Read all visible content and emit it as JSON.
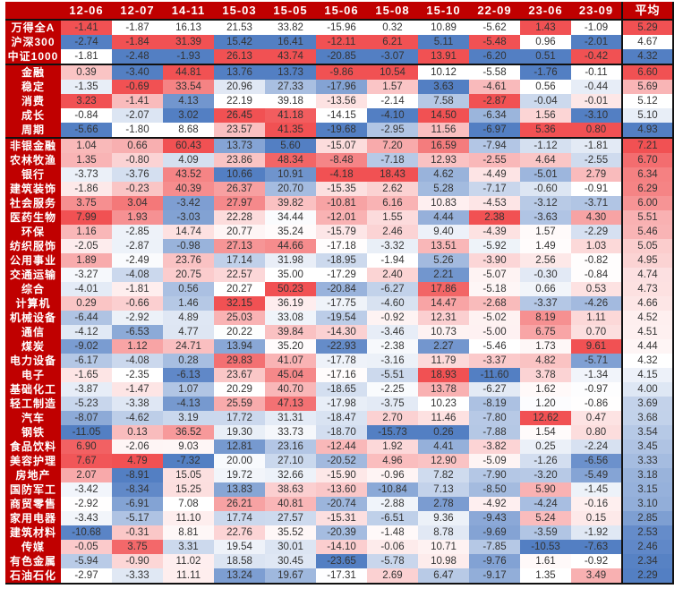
{
  "chart_data": {
    "type": "heatmap",
    "color_scale": {
      "high": "#f0484a",
      "mid": "#ffffff",
      "low": "#4a78c0"
    },
    "columns": [
      "12-06",
      "12-07",
      "14-11",
      "15-03",
      "15-05",
      "15-06",
      "15-08",
      "15-10",
      "22-09",
      "23-06",
      "23-09",
      "平均"
    ],
    "groups": [
      {
        "rows": [
          {
            "label": "万得全A",
            "values": [
              -1.41,
              -1.87,
              16.13,
              21.53,
              33.82,
              -15.96,
              0.32,
              10.89,
              -5.62,
              1.43,
              -1.09,
              5.29
            ]
          },
          {
            "label": "沪深300",
            "values": [
              -2.74,
              -1.84,
              31.39,
              15.42,
              16.41,
              -12.11,
              6.21,
              5.11,
              -5.48,
              0.96,
              -2.01,
              4.67
            ]
          },
          {
            "label": "中证1000",
            "values": [
              -1.81,
              -2.48,
              -1.93,
              26.13,
              43.74,
              -20.85,
              -3.07,
              13.91,
              -6.2,
              0.51,
              -0.42,
              4.32
            ]
          }
        ]
      },
      {
        "rows": [
          {
            "label": "金融",
            "values": [
              0.39,
              -3.4,
              44.81,
              13.76,
              13.73,
              -9.86,
              10.54,
              10.12,
              -5.58,
              -1.76,
              -0.11,
              6.6
            ]
          },
          {
            "label": "稳定",
            "values": [
              -1.35,
              -0.69,
              33.54,
              20.96,
              27.33,
              -17.96,
              1.57,
              3.63,
              -4.61,
              0.56,
              -0.44,
              5.69
            ]
          },
          {
            "label": "消费",
            "values": [
              3.23,
              -1.41,
              4.13,
              22.19,
              39.18,
              -13.56,
              -2.14,
              7.58,
              -2.87,
              -0.04,
              -0.01,
              5.12
            ]
          },
          {
            "label": "成长",
            "values": [
              -0.84,
              -2.07,
              3.02,
              26.45,
              41.18,
              -14.15,
              -4.1,
              14.5,
              -6.34,
              1.56,
              -3.1,
              5.1
            ]
          },
          {
            "label": "周期",
            "values": [
              -5.66,
              -1.8,
              8.68,
              23.57,
              41.35,
              -19.68,
              -2.95,
              11.56,
              -6.97,
              5.36,
              0.8,
              4.93
            ]
          }
        ]
      },
      {
        "rows": [
          {
            "label": "非银金融",
            "values": [
              1.04,
              0.66,
              60.43,
              13.73,
              5.6,
              -15.07,
              7.2,
              16.59,
              -7.94,
              -1.12,
              -1.81,
              7.21
            ]
          },
          {
            "label": "农林牧渔",
            "values": [
              1.35,
              -0.8,
              4.09,
              23.86,
              48.34,
              -8.48,
              -7.18,
              12.93,
              -2.55,
              4.64,
              -2.55,
              6.7
            ]
          },
          {
            "label": "银行",
            "values": [
              -3.73,
              -3.76,
              43.52,
              10.66,
              10.91,
              -4.18,
              18.43,
              4.62,
              -4.49,
              -5.01,
              2.79,
              6.34
            ]
          },
          {
            "label": "建筑装饰",
            "values": [
              -1.86,
              -0.23,
              40.39,
              26.37,
              20.7,
              -15.35,
              2.62,
              5.28,
              -7.17,
              -0.6,
              -0.91,
              6.29
            ]
          },
          {
            "label": "社会服务",
            "values": [
              3.75,
              3.04,
              -3.42,
              27.97,
              39.82,
              -10.81,
              6.16,
              10.83,
              -4.53,
              -3.12,
              -3.71,
              6.0
            ]
          },
          {
            "label": "医药生物",
            "values": [
              7.99,
              1.93,
              -3.03,
              22.28,
              34.44,
              -12.01,
              1.55,
              4.44,
              2.38,
              -3.63,
              4.3,
              5.51
            ]
          },
          {
            "label": "环保",
            "values": [
              1.16,
              -2.85,
              14.74,
              20.77,
              35.24,
              -15.79,
              2.46,
              9.4,
              -4.39,
              1.57,
              -2.29,
              5.46
            ]
          },
          {
            "label": "纺织服饰",
            "values": [
              -2.05,
              -2.87,
              -0.98,
              27.13,
              44.66,
              -17.18,
              -3.32,
              13.51,
              -5.92,
              1.49,
              1.03,
              5.05
            ]
          },
          {
            "label": "公用事业",
            "values": [
              1.89,
              -2.49,
              23.76,
              17.14,
              31.98,
              -18.95,
              -1.94,
              5.26,
              -3.9,
              2.56,
              -0.82,
              4.95
            ]
          },
          {
            "label": "交通运输",
            "values": [
              -3.27,
              -4.08,
              20.75,
              22.57,
              35.0,
              -17.29,
              2.4,
              2.21,
              -5.07,
              -0.3,
              -0.84,
              4.74
            ]
          },
          {
            "label": "综合",
            "values": [
              -4.01,
              -1.81,
              0.56,
              20.27,
              50.23,
              -20.84,
              -6.27,
              17.86,
              -5.18,
              0.66,
              0.53,
              4.73
            ]
          },
          {
            "label": "计算机",
            "values": [
              0.29,
              -0.66,
              1.46,
              32.15,
              36.19,
              -17.75,
              -4.6,
              14.47,
              -2.68,
              -3.37,
              -4.26,
              4.66
            ]
          },
          {
            "label": "机械设备",
            "values": [
              -6.44,
              -2.92,
              4.89,
              25.03,
              33.08,
              -19.54,
              -0.92,
              12.31,
              -5.02,
              8.19,
              1.11,
              4.52
            ]
          },
          {
            "label": "通信",
            "values": [
              -4.12,
              -6.53,
              4.77,
              20.22,
              39.84,
              -14.3,
              -3.46,
              10.73,
              -5.0,
              6.75,
              0.7,
              4.51
            ]
          },
          {
            "label": "煤炭",
            "values": [
              -9.02,
              1.12,
              24.71,
              13.94,
              35.2,
              -22.93,
              -2.38,
              2.27,
              -5.46,
              1.73,
              9.61,
              4.44
            ]
          },
          {
            "label": "电力设备",
            "values": [
              -6.17,
              -4.08,
              0.28,
              29.83,
              41.07,
              -17.78,
              -3.16,
              11.79,
              -3.37,
              4.82,
              -5.71,
              4.32
            ]
          },
          {
            "label": "电子",
            "values": [
              -1.65,
              -2.35,
              -6.13,
              23.67,
              45.04,
              -17.16,
              -5.51,
              18.93,
              -11.6,
              3.78,
              -1.34,
              4.15
            ]
          },
          {
            "label": "基础化工",
            "values": [
              -3.87,
              -1.47,
              1.07,
              20.29,
              40.7,
              -18.65,
              -2.25,
              13.78,
              -6.27,
              1.62,
              -0.97,
              4.0
            ]
          },
          {
            "label": "轻工制造",
            "values": [
              -5.23,
              -3.38,
              -4.13,
              25.59,
              47.13,
              -17.98,
              -3.75,
              10.23,
              -8.19,
              1.2,
              -0.86,
              3.69
            ]
          },
          {
            "label": "汽车",
            "values": [
              -8.07,
              -4.62,
              3.19,
              17.72,
              31.31,
              -18.47,
              2.7,
              11.46,
              -7.8,
              12.62,
              0.47,
              3.68
            ]
          },
          {
            "label": "钢铁",
            "values": [
              -11.05,
              0.13,
              36.52,
              19.3,
              33.73,
              -18.7,
              -15.73,
              0.26,
              -7.88,
              1.54,
              0.8,
              3.54
            ]
          },
          {
            "label": "食品饮料",
            "values": [
              6.9,
              -2.06,
              9.03,
              12.81,
              23.16,
              -12.44,
              1.92,
              4.41,
              -3.82,
              0.25,
              -2.24,
              3.45
            ]
          },
          {
            "label": "美容护理",
            "values": [
              7.67,
              4.79,
              -7.32,
              20.0,
              27.1,
              -20.52,
              4.96,
              12.9,
              -5.09,
              -1.26,
              -6.56,
              3.33
            ]
          },
          {
            "label": "房地产",
            "values": [
              2.07,
              -8.91,
              15.05,
              19.72,
              32.66,
              -15.9,
              -0.96,
              7.82,
              -7.9,
              -3.2,
              -5.49,
              3.18
            ]
          },
          {
            "label": "国防军工",
            "values": [
              -3.42,
              -8.34,
              15.25,
              13.83,
              38.63,
              -13.6,
              -10.84,
              7.13,
              -8.5,
              5.9,
              -1.45,
              3.15
            ]
          },
          {
            "label": "商贸零售",
            "values": [
              -2.92,
              -6.91,
              7.08,
              26.21,
              40.81,
              -20.74,
              -2.88,
              2.78,
              -4.92,
              -4.24,
              -0.16,
              3.1
            ]
          },
          {
            "label": "家用电器",
            "values": [
              -3.43,
              -5.17,
              11.1,
              17.74,
              27.57,
              -15.31,
              -6.51,
              9.36,
              -9.43,
              5.24,
              0.15,
              2.85
            ]
          },
          {
            "label": "建筑材料",
            "values": [
              -10.68,
              -0.31,
              8.81,
              22.76,
              35.52,
              -20.39,
              -1.48,
              8.78,
              -9.69,
              -3.59,
              -1.92,
              2.53
            ]
          },
          {
            "label": "传媒",
            "values": [
              -0.05,
              3.75,
              3.31,
              19.54,
              30.01,
              -14.1,
              -0.06,
              10.71,
              -7.85,
              -10.53,
              -7.63,
              2.46
            ]
          },
          {
            "label": "有色金属",
            "values": [
              -5.94,
              -0.9,
              11.02,
              18.58,
              30.45,
              -23.65,
              -5.78,
              10.98,
              -9.76,
              1.61,
              -0.92,
              2.34
            ]
          },
          {
            "label": "石油石化",
            "values": [
              -2.97,
              -3.33,
              11.11,
              13.24,
              19.67,
              -17.31,
              2.69,
              6.47,
              -9.17,
              1.35,
              3.49,
              2.29
            ]
          }
        ]
      }
    ]
  }
}
